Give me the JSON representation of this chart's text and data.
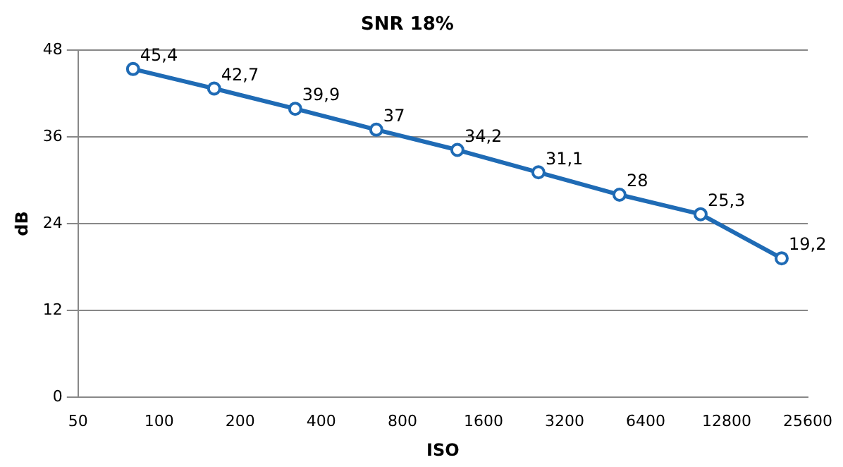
{
  "chart_data": {
    "type": "line",
    "title": "SNR 18%",
    "xlabel": "ISO",
    "ylabel": "dB",
    "x": [
      80,
      160,
      320,
      640,
      1280,
      2560,
      5120,
      10240,
      20480
    ],
    "series": [
      {
        "color": "#1f6bb5",
        "values": [
          45.4,
          42.7,
          39.9,
          37,
          34.2,
          31.1,
          28,
          25.3,
          19.2
        ],
        "value_labels": [
          "45,4",
          "42,7",
          "39,9",
          "37",
          "34,2",
          "31,1",
          "28",
          "25,3",
          "19,2"
        ]
      }
    ],
    "log": "x",
    "xlim": [
      50,
      25600
    ],
    "xticks": [
      50,
      100,
      200,
      400,
      800,
      1600,
      3200,
      6400,
      12800,
      25600
    ],
    "ylim": [
      0,
      48
    ],
    "yticks": [
      0,
      12,
      24,
      36,
      48
    ],
    "grid": "y",
    "legend": false,
    "marker": "circle",
    "line_style": "solid"
  }
}
